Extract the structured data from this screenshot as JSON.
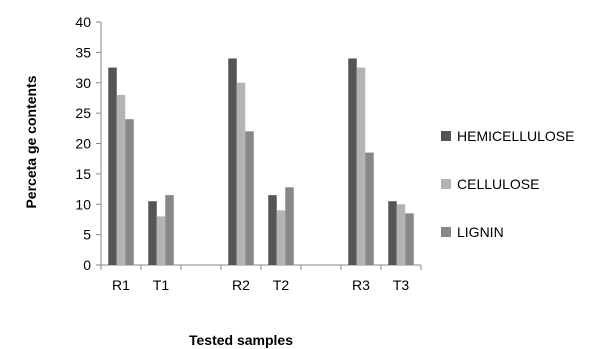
{
  "chart_data": {
    "type": "bar",
    "xlabel": "Tested samples",
    "ylabel": "Perceta ge contents",
    "ylim": [
      0,
      40
    ],
    "yticks": [
      0,
      5,
      10,
      15,
      20,
      25,
      30,
      35,
      40
    ],
    "categories": [
      "R1",
      "T1",
      "",
      "R2",
      "T2",
      "",
      "R3",
      "T3"
    ],
    "series": [
      {
        "name": "HEMICELLULOSE",
        "color": "#555555",
        "values": [
          32.5,
          10.5,
          null,
          34,
          11.5,
          null,
          34,
          10.5
        ]
      },
      {
        "name": "CELLULOSE",
        "color": "#b3b3b3",
        "values": [
          28,
          8,
          null,
          30,
          9,
          null,
          32.5,
          10
        ]
      },
      {
        "name": "LIGNIN",
        "color": "#878787",
        "values": [
          24,
          11.5,
          null,
          22,
          12.8,
          null,
          18.5,
          8.5
        ]
      }
    ],
    "legend_position": "right",
    "grid": false
  }
}
